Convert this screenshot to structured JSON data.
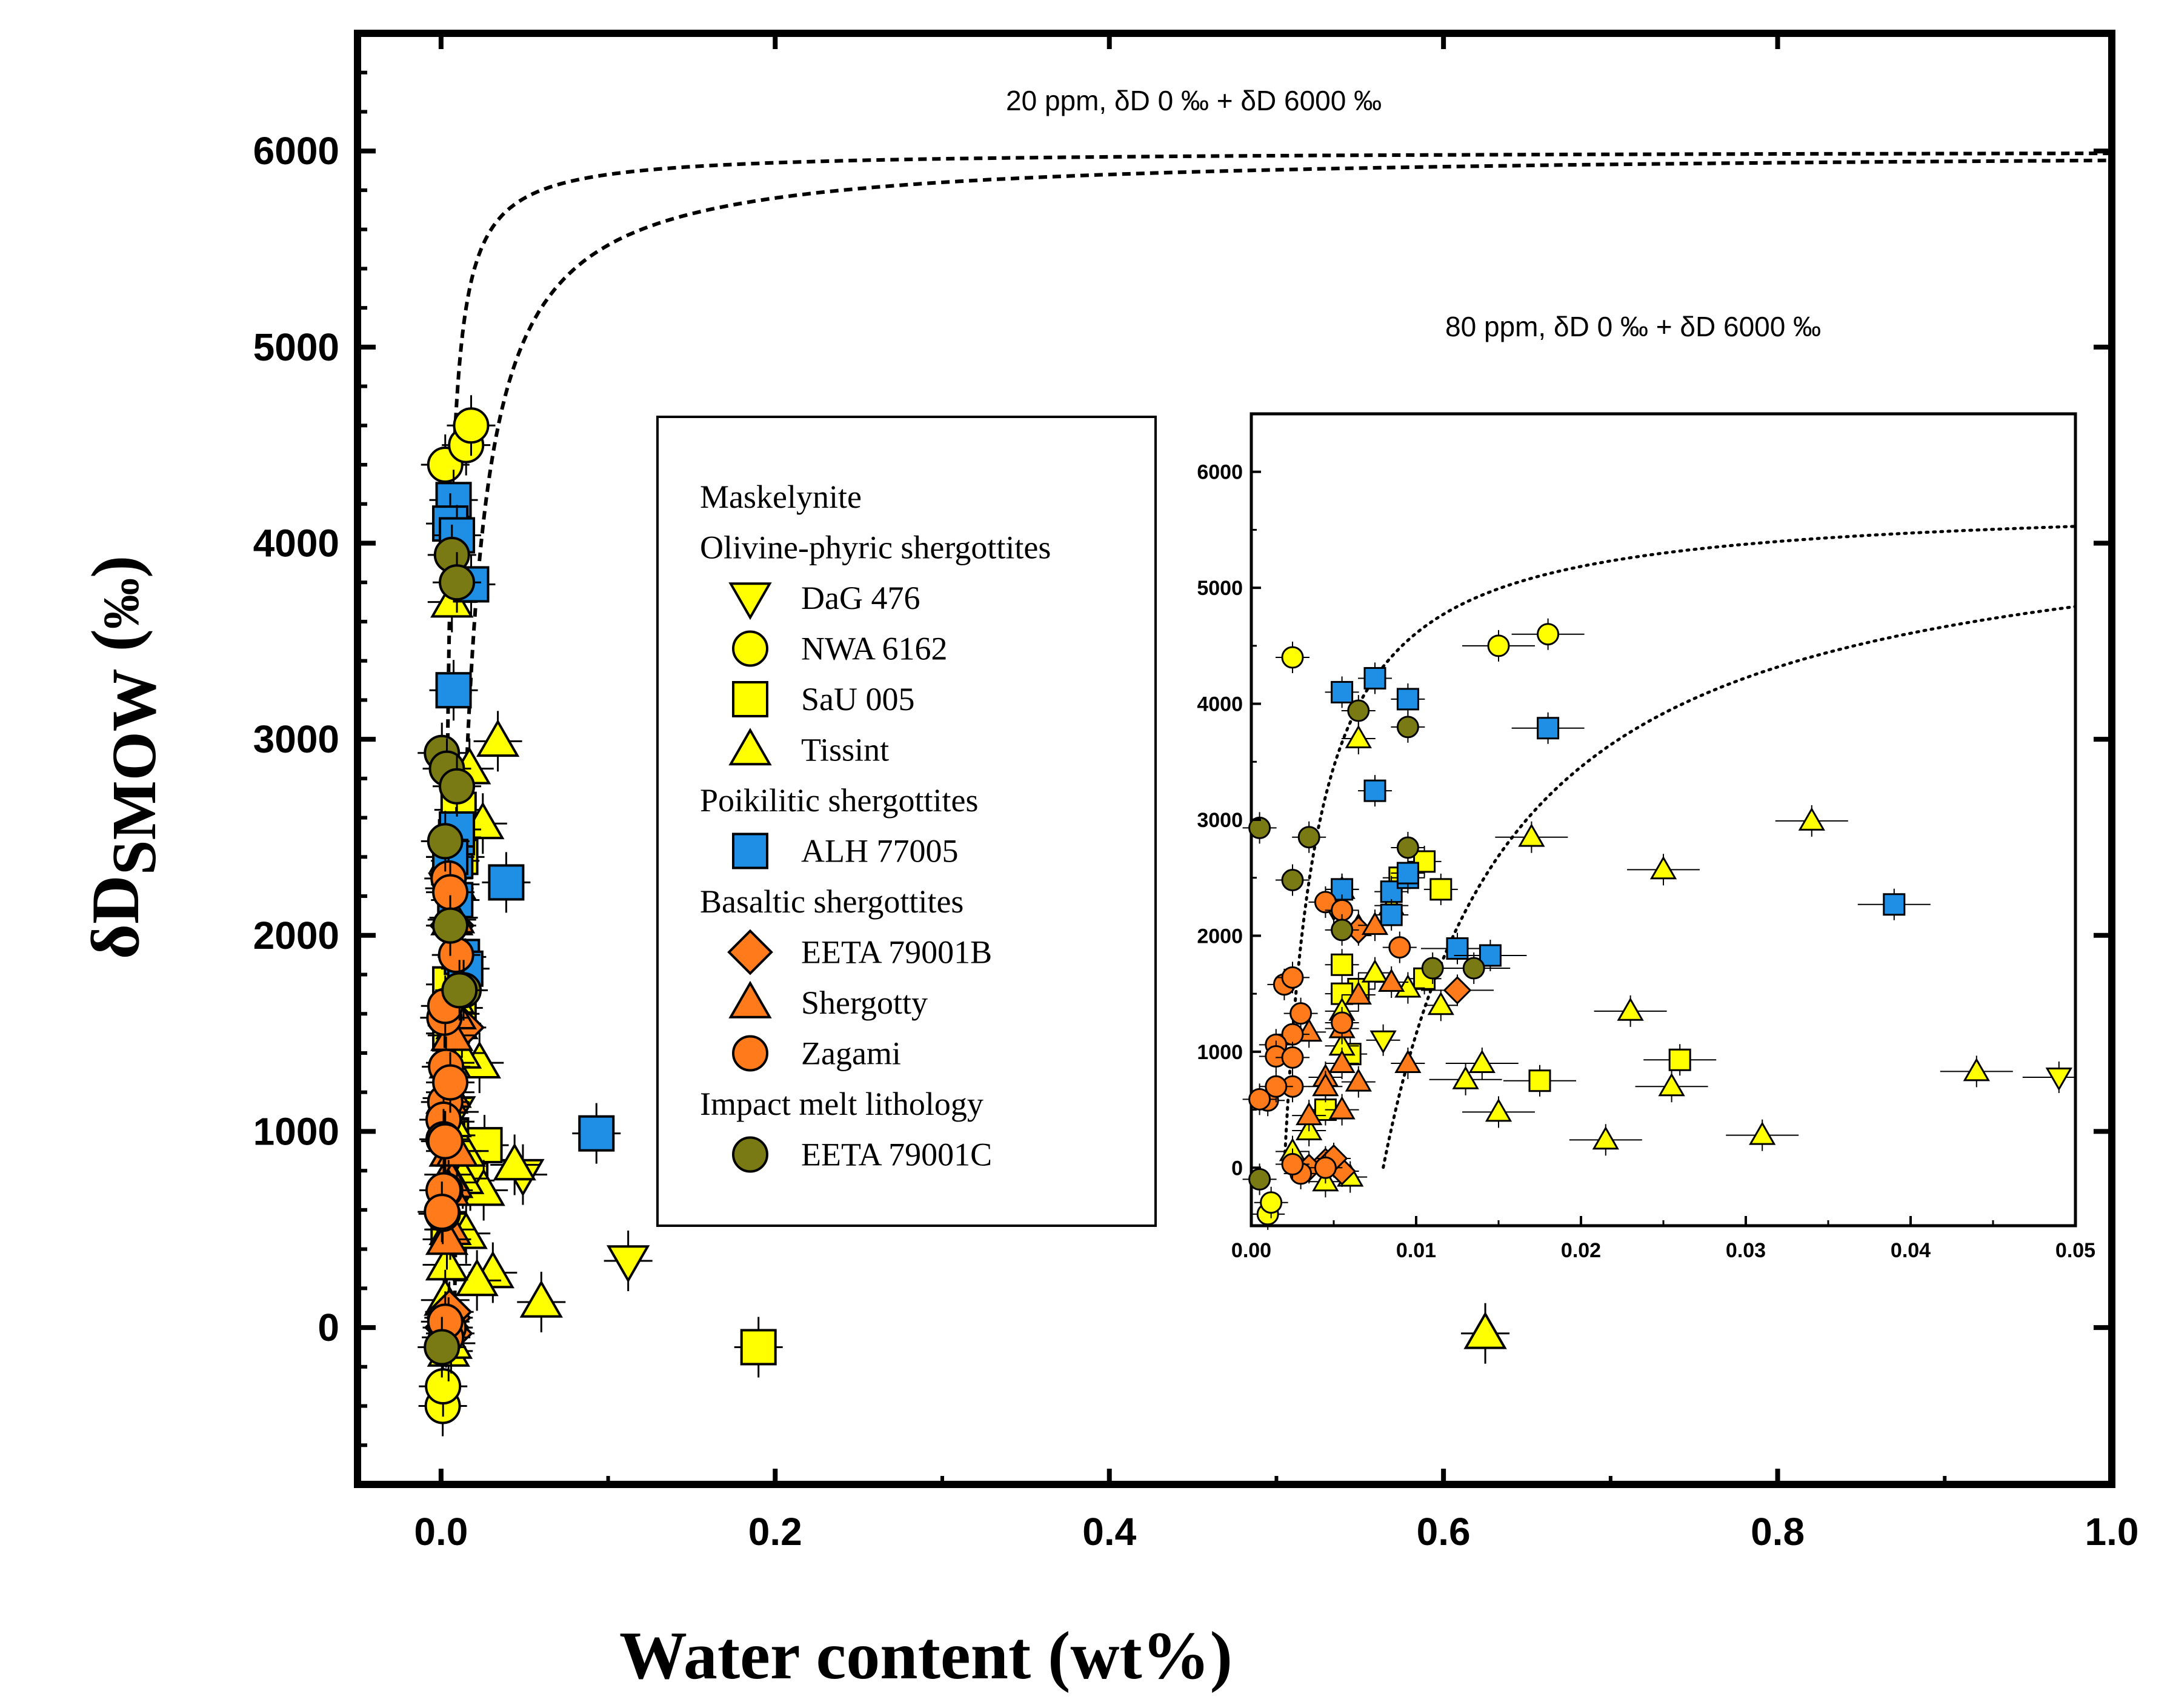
{
  "chart_data": {
    "type": "scatter",
    "xlabel": "Water content (wt%)",
    "ylabel_main": "δD",
    "ylabel_sub": "SMOW",
    "ylabel_unit": "‰",
    "xlim": [
      -0.05,
      1.0
    ],
    "ylim": [
      -800,
      6600
    ],
    "xticks": [
      0.0,
      0.2,
      0.4,
      0.6,
      0.8,
      1.0
    ],
    "xtick_labels": [
      "0.0",
      "0.2",
      "0.4",
      "0.6",
      "0.8",
      "1.0"
    ],
    "yticks": [
      0,
      1000,
      2000,
      3000,
      4000,
      5000,
      6000
    ],
    "ytick_labels": [
      "0",
      "1000",
      "2000",
      "3000",
      "4000",
      "5000",
      "6000"
    ],
    "curves": [
      {
        "label": "20 ppm, δD 0 ‰ + δD 6000 ‰",
        "ppm": 0.002,
        "end": 6000
      },
      {
        "label": "80 ppm, δD 0 ‰ + δD 6000 ‰",
        "ppm": 0.008,
        "end": 6000
      }
    ],
    "legend": [
      {
        "kind": "header",
        "label": "Maskelynite"
      },
      {
        "kind": "header",
        "label": "Olivine-phyric shergottites"
      },
      {
        "kind": "item",
        "label": "DaG 476",
        "marker": "triangle-down",
        "color": "#ffff00"
      },
      {
        "kind": "item",
        "label": "NWA 6162",
        "marker": "circle",
        "color": "#ffff00"
      },
      {
        "kind": "item",
        "label": "SaU 005",
        "marker": "square",
        "color": "#ffff00"
      },
      {
        "kind": "item",
        "label": "Tissint",
        "marker": "triangle-up",
        "color": "#ffff00"
      },
      {
        "kind": "header",
        "label": "Poikilitic shergottites"
      },
      {
        "kind": "item",
        "label": "ALH 77005",
        "marker": "square",
        "color": "#1f8fe6"
      },
      {
        "kind": "header",
        "label": "Basaltic shergottites"
      },
      {
        "kind": "item",
        "label": "EETA 79001B",
        "marker": "diamond",
        "color": "#ff7a1a"
      },
      {
        "kind": "item",
        "label": "Shergotty",
        "marker": "triangle-up",
        "color": "#ff7a1a"
      },
      {
        "kind": "item",
        "label": "Zagami",
        "marker": "circle",
        "color": "#ff7a1a"
      },
      {
        "kind": "header",
        "label": "Impact melt lithology"
      },
      {
        "kind": "item",
        "label": "EETA 79001C",
        "marker": "circle",
        "color": "#7a7a14"
      }
    ],
    "series": [
      {
        "name": "DaG 476",
        "marker": "triangle-down",
        "color": "#ffff00",
        "x": [
          0.049,
          0.112,
          0.005,
          0.008
        ],
        "y": [
          780,
          340,
          2240,
          1100
        ]
      },
      {
        "name": "NWA 6162",
        "marker": "circle",
        "color": "#ffff00",
        "x": [
          0.0025,
          0.015,
          0.018,
          0.001,
          0.0012
        ],
        "y": [
          4400,
          4500,
          4600,
          -400,
          -300
        ]
      },
      {
        "name": "SaU 005",
        "marker": "square",
        "color": "#ffff00",
        "x": [
          0.19,
          0.026,
          0.0175,
          0.0105,
          0.0115,
          0.009,
          0.0055,
          0.0065,
          0.0055,
          0.006,
          0.0045,
          0.0105
        ],
        "y": [
          -100,
          930,
          750,
          2640,
          2400,
          2500,
          1750,
          1540,
          1500,
          980,
          500,
          1630
        ]
      },
      {
        "name": "Tissint",
        "marker": "triangle-up",
        "color": "#ffff00",
        "x": [
          0.625,
          0.034,
          0.017,
          0.025,
          0.023,
          0.0255,
          0.031,
          0.0215,
          0.014,
          0.013,
          0.015,
          0.0055,
          0.0065,
          0.0075,
          0.0085,
          0.0095,
          0.0115,
          0.0055,
          0.0035,
          0.0045,
          0.0025,
          0.006,
          0.0065,
          0.0055,
          0.06,
          0.044
        ],
        "y": [
          -30,
          2990,
          2850,
          2570,
          1350,
          700,
          280,
          240,
          900,
          760,
          480,
          2400,
          2080,
          1680,
          2260,
          1550,
          1400,
          1350,
          320,
          -120,
          140,
          -80,
          3700,
          1050,
          130,
          830
        ]
      },
      {
        "name": "ALH 77005",
        "marker": "square",
        "color": "#1f8fe6",
        "x": [
          0.093,
          0.039,
          0.018,
          0.0075,
          0.0055,
          0.0095,
          0.0075,
          0.0085,
          0.0095,
          0.0085,
          0.0095,
          0.0125,
          0.0145,
          0.0055
        ],
        "y": [
          990,
          2270,
          3790,
          4220,
          4100,
          4040,
          3250,
          2380,
          2500,
          2180,
          2540,
          1890,
          1830,
          2400
        ]
      },
      {
        "name": "EETA 79001B",
        "marker": "diamond",
        "color": "#ff7a1a",
        "x": [
          0.0125,
          0.0045,
          0.0055,
          0.0035,
          0.005,
          0.0065
        ],
        "y": [
          1530,
          50,
          -30,
          0,
          80,
          2050
        ]
      },
      {
        "name": "Shergotty",
        "marker": "triangle-up",
        "color": "#ff7a1a",
        "x": [
          0.0085,
          0.0075,
          0.0065,
          0.0055,
          0.0035,
          0.0045,
          0.0055,
          0.0065,
          0.0095,
          0.0055,
          0.0045,
          0.0035
        ],
        "y": [
          1600,
          2090,
          1490,
          1200,
          1170,
          780,
          900,
          740,
          900,
          500,
          700,
          450
        ]
      },
      {
        "name": "Zagami",
        "marker": "circle",
        "color": "#ff7a1a",
        "x": [
          0.0045,
          0.0055,
          0.009,
          0.002,
          0.0025,
          0.003,
          0.0025,
          0.0015,
          0.0015,
          0.0025,
          0.0025,
          0.001,
          0.0015,
          0.0005,
          0.0055,
          0.0045,
          0.003,
          0.0025
        ],
        "y": [
          2290,
          2220,
          1900,
          1580,
          1640,
          1330,
          1150,
          1060,
          960,
          950,
          700,
          580,
          700,
          590,
          1250,
          0,
          -50,
          30
        ]
      },
      {
        "name": "EETA 79001C",
        "marker": "circle",
        "color": "#7a7a14",
        "x": [
          0.0005,
          0.0035,
          0.0025,
          0.0065,
          0.0095,
          0.0095,
          0.0135,
          0.0055,
          0.011,
          0.0005
        ],
        "y": [
          2930,
          2850,
          2480,
          3940,
          3800,
          2760,
          1720,
          2050,
          1720,
          -100
        ]
      }
    ],
    "inset": {
      "xlim": [
        0.0,
        0.05
      ],
      "ylim": [
        -500,
        6500
      ],
      "xticks": [
        0.0,
        0.01,
        0.02,
        0.03,
        0.04,
        0.05
      ],
      "xtick_labels": [
        "0.00",
        "0.01",
        "0.02",
        "0.03",
        "0.04",
        "0.05"
      ],
      "yticks": [
        0,
        1000,
        2000,
        3000,
        4000,
        5000,
        6000
      ],
      "ytick_labels": [
        "0",
        "1000",
        "2000",
        "3000",
        "4000",
        "5000",
        "6000"
      ]
    }
  }
}
